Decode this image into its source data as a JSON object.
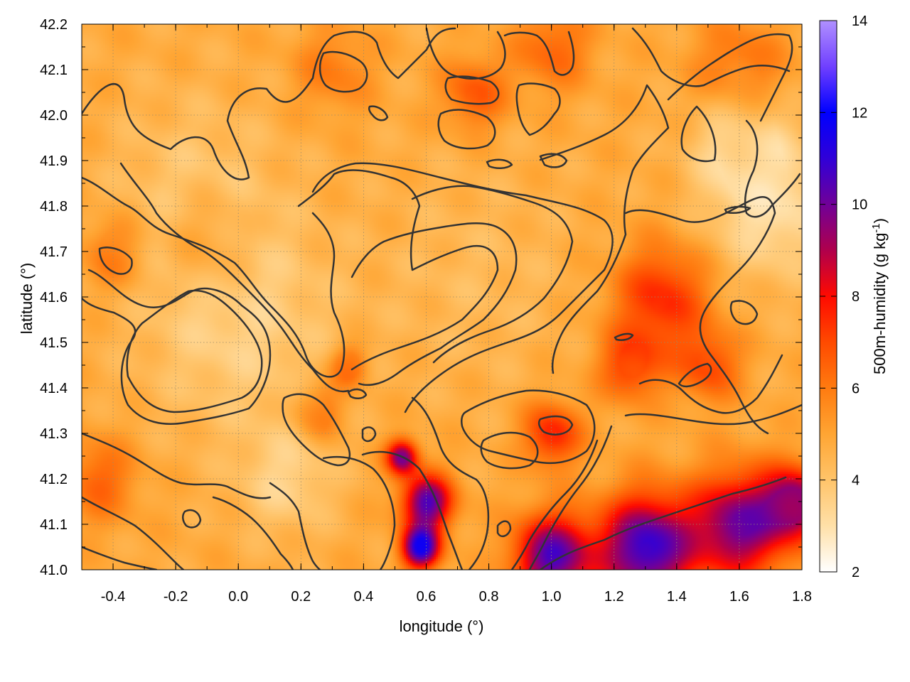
{
  "chart_data": {
    "type": "heatmap",
    "title": "",
    "xlabel": "longitude (°)",
    "ylabel": "latitude (°)",
    "colorbar_label": "500m-humidity (g kg",
    "colorbar_label_sup": "-1",
    "colorbar_label_end": ")",
    "xlim": [
      -0.5,
      1.8
    ],
    "ylim": [
      41.0,
      42.2
    ],
    "clim": [
      2,
      14
    ],
    "x_ticks": [
      {
        "value": -0.4,
        "label": "-0.4"
      },
      {
        "value": -0.2,
        "label": "-0.2"
      },
      {
        "value": 0.0,
        "label": "0.0"
      },
      {
        "value": 0.2,
        "label": "0.2"
      },
      {
        "value": 0.4,
        "label": "0.4"
      },
      {
        "value": 0.6,
        "label": "0.6"
      },
      {
        "value": 0.8,
        "label": "0.8"
      },
      {
        "value": 1.0,
        "label": "1.0"
      },
      {
        "value": 1.2,
        "label": "1.2"
      },
      {
        "value": 1.4,
        "label": "1.4"
      },
      {
        "value": 1.6,
        "label": "1.6"
      },
      {
        "value": 1.8,
        "label": "1.8"
      }
    ],
    "y_ticks": [
      {
        "value": 41.0,
        "label": "41.0"
      },
      {
        "value": 41.1,
        "label": "41.1"
      },
      {
        "value": 41.2,
        "label": "41.2"
      },
      {
        "value": 41.3,
        "label": "41.3"
      },
      {
        "value": 41.4,
        "label": "41.4"
      },
      {
        "value": 41.5,
        "label": "41.5"
      },
      {
        "value": 41.6,
        "label": "41.6"
      },
      {
        "value": 41.7,
        "label": "41.7"
      },
      {
        "value": 41.8,
        "label": "41.8"
      },
      {
        "value": 41.9,
        "label": "41.9"
      },
      {
        "value": 42.0,
        "label": "42.0"
      },
      {
        "value": 42.1,
        "label": "42.1"
      },
      {
        "value": 42.2,
        "label": "42.2"
      }
    ],
    "colorbar_ticks": [
      {
        "value": 2,
        "label": "2"
      },
      {
        "value": 4,
        "label": "4"
      },
      {
        "value": 6,
        "label": "6"
      },
      {
        "value": 8,
        "label": "8"
      },
      {
        "value": 10,
        "label": "10"
      },
      {
        "value": 12,
        "label": "12"
      },
      {
        "value": 14,
        "label": "14"
      }
    ],
    "colormap": [
      {
        "value": 2,
        "color": "#ffffff"
      },
      {
        "value": 3,
        "color": "#ffe0a8"
      },
      {
        "value": 4,
        "color": "#ffc46a"
      },
      {
        "value": 5,
        "color": "#ffa533"
      },
      {
        "value": 6,
        "color": "#ff7b10"
      },
      {
        "value": 7,
        "color": "#ff4a00"
      },
      {
        "value": 8,
        "color": "#ff0a00"
      },
      {
        "value": 9,
        "color": "#b0004c"
      },
      {
        "value": 10,
        "color": "#700098"
      },
      {
        "value": 11,
        "color": "#3000d8"
      },
      {
        "value": 12,
        "color": "#0000ff"
      },
      {
        "value": 13,
        "color": "#7040ff"
      },
      {
        "value": 14,
        "color": "#b090ff"
      }
    ],
    "grid": true,
    "contour_levels": [
      4,
      5,
      6,
      8
    ],
    "field_features": [
      {
        "lon": 0.0,
        "lat": 41.55,
        "humidity": 3.5,
        "radius": 0.3
      },
      {
        "lon": -0.15,
        "lat": 41.85,
        "humidity": 4.0,
        "radius": 0.25
      },
      {
        "lon": 0.75,
        "lat": 41.65,
        "humidity": 4.3,
        "radius": 0.3
      },
      {
        "lon": 1.7,
        "lat": 41.8,
        "humidity": 3.0,
        "radius": 0.2
      },
      {
        "lon": 1.6,
        "lat": 41.95,
        "humidity": 3.2,
        "radius": 0.15
      },
      {
        "lon": 0.15,
        "lat": 41.2,
        "humidity": 3.5,
        "radius": 0.15
      },
      {
        "lon": -0.45,
        "lat": 41.2,
        "humidity": 6.5,
        "radius": 0.12
      },
      {
        "lon": -0.4,
        "lat": 41.7,
        "humidity": 6.3,
        "radius": 0.1
      },
      {
        "lon": -0.1,
        "lat": 41.72,
        "humidity": 6.0,
        "radius": 0.12
      },
      {
        "lon": 0.25,
        "lat": 41.35,
        "humidity": 6.5,
        "radius": 0.08
      },
      {
        "lon": 0.35,
        "lat": 41.45,
        "humidity": 6.8,
        "radius": 0.06
      },
      {
        "lon": 0.3,
        "lat": 42.1,
        "humidity": 6.0,
        "radius": 0.12
      },
      {
        "lon": 0.75,
        "lat": 42.05,
        "humidity": 6.8,
        "radius": 0.1
      },
      {
        "lon": 1.0,
        "lat": 42.15,
        "humidity": 6.5,
        "radius": 0.12
      },
      {
        "lon": 1.6,
        "lat": 42.1,
        "humidity": 6.4,
        "radius": 0.15
      },
      {
        "lon": 1.0,
        "lat": 41.3,
        "humidity": 7.8,
        "radius": 0.09
      },
      {
        "lon": 1.35,
        "lat": 41.6,
        "humidity": 7.6,
        "radius": 0.15
      },
      {
        "lon": 1.25,
        "lat": 41.45,
        "humidity": 7.2,
        "radius": 0.1
      },
      {
        "lon": 1.5,
        "lat": 41.45,
        "humidity": 7.0,
        "radius": 0.1
      },
      {
        "lon": 0.6,
        "lat": 41.15,
        "humidity": 10.5,
        "radius": 0.08
      },
      {
        "lon": 0.58,
        "lat": 41.05,
        "humidity": 11.5,
        "radius": 0.06
      },
      {
        "lon": 0.52,
        "lat": 41.25,
        "humidity": 10.0,
        "radius": 0.05
      },
      {
        "lon": 1.0,
        "lat": 41.03,
        "humidity": 10.5,
        "radius": 0.12
      },
      {
        "lon": 1.3,
        "lat": 41.05,
        "humidity": 11.0,
        "radius": 0.15
      },
      {
        "lon": 1.6,
        "lat": 41.1,
        "humidity": 10.0,
        "radius": 0.15
      },
      {
        "lon": 1.78,
        "lat": 41.15,
        "humidity": 9.5,
        "radius": 0.1
      }
    ]
  }
}
